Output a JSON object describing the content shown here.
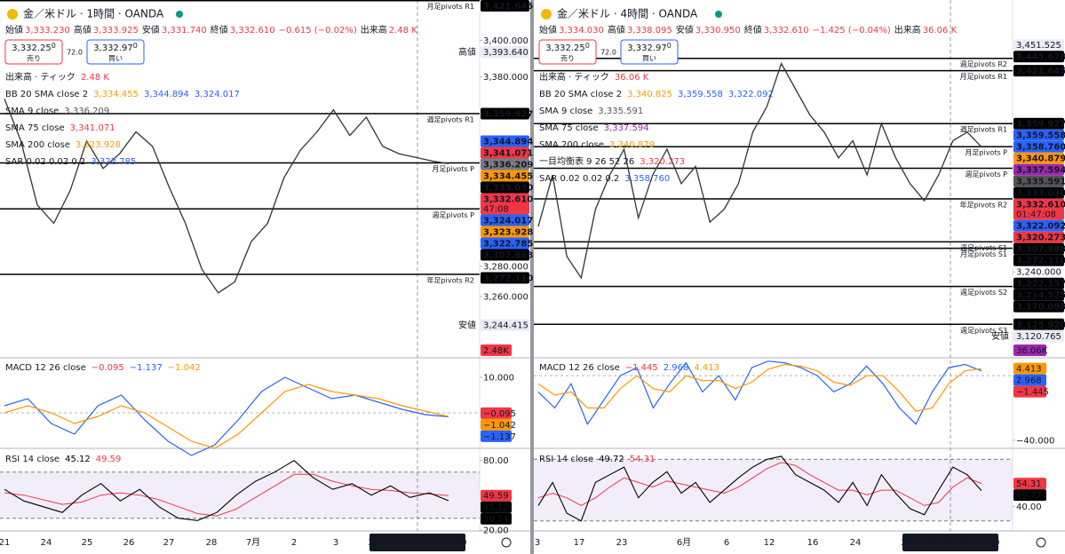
{
  "panels": [
    {
      "header": {
        "symbol": "金／米ドル · 1時間 · OANDA",
        "ohlc": [
          {
            "label": "始値",
            "value": "3,333.230"
          },
          {
            "label": "高値",
            "value": "3,333.925"
          },
          {
            "label": "安値",
            "value": "3,331.740"
          },
          {
            "label": "終値",
            "value": "3,332.610"
          }
        ],
        "change": "−0.615 (−0.02%)",
        "volume_label": "出来高",
        "volume": "2.48 K"
      },
      "sell": {
        "price": "3,332.25",
        "pip": "0",
        "label": "売り"
      },
      "spread": "72.0",
      "buy": {
        "price": "3,332.97",
        "pip": "0",
        "label": "買い"
      },
      "volume_legend": {
        "name": "出来高 · ティック",
        "value": "2.48 K"
      },
      "indicators": [
        {
          "name": "BB 20 SMA close 2",
          "values": [
            "3,334.455",
            "3,344.894",
            "3,324.017"
          ],
          "colors": [
            "#ff9800",
            "#2962ff",
            "#2962ff"
          ]
        },
        {
          "name": "SMA 9 close",
          "values": [
            "3,336.209"
          ],
          "colors": [
            "#555555"
          ]
        },
        {
          "name": "SMA 75 close",
          "values": [
            "3,341.071"
          ],
          "colors": [
            "#f23645"
          ]
        },
        {
          "name": "SMA 200 close",
          "values": [
            "3,323.928"
          ],
          "colors": [
            "#ff9800"
          ]
        },
        {
          "name": "SAR 0.02 0.02 0.2",
          "values": [
            "3,322.785"
          ],
          "colors": [
            "#2962ff"
          ]
        }
      ],
      "ylim": [
        3228,
        3422
      ],
      "price": {
        "name": "金／米ドル",
        "color": "#333333",
        "values": [
          3368,
          3345,
          3310,
          3300,
          3318,
          3345,
          3330,
          3338,
          3350,
          3342,
          3320,
          3300,
          3275,
          3262,
          3268,
          3290,
          3300,
          3325,
          3340,
          3350,
          3362,
          3348,
          3358,
          3342,
          3338,
          3336,
          3334,
          3332.61
        ]
      },
      "pivots": [
        {
          "value": 3421.645,
          "label": "月足pivots R1"
        },
        {
          "value": 3359.927,
          "label": "週足pivots R1"
        },
        {
          "value": 3333.03,
          "label": "月足pivots P"
        },
        {
          "value": 3307.888,
          "label": "週足pivots P"
        },
        {
          "value": 3272.11,
          "label": "年足pivots R2"
        }
      ],
      "price_axis": [
        {
          "value": 3421.645,
          "label": "3,421.645",
          "color": "#000000"
        },
        {
          "value": 3400,
          "label": "3,400.000"
        },
        {
          "value": 3393.64,
          "label": "3,393.640",
          "tag": "高値",
          "color": "#e9ecf5"
        },
        {
          "value": 3380,
          "label": "3,380.000"
        },
        {
          "value": 3359.927,
          "label": "3,359.927",
          "color": "#000000"
        },
        {
          "value": 3344.894,
          "label": "3,344.894",
          "color": "#2962ff"
        },
        {
          "value": 3341.071,
          "label": "3,341.071",
          "color": "#f23645"
        },
        {
          "value": 3336.209,
          "label": "3,336.209",
          "color": "#787b86"
        },
        {
          "value": 3334.455,
          "label": "3,334.455",
          "color": "#ff9800"
        },
        {
          "value": 3333.03,
          "label": "3,333.030",
          "color": "#000000"
        },
        {
          "value": 3332.61,
          "label": "3,332.610",
          "color": "#f23645",
          "sub": "47:08"
        },
        {
          "value": 3324.017,
          "label": "3,324.017",
          "color": "#2962ff"
        },
        {
          "value": 3323.928,
          "label": "3,323.928",
          "color": "#ff9800"
        },
        {
          "value": 3322.785,
          "label": "3,322.785",
          "color": "#2962ff"
        },
        {
          "value": 3307.888,
          "label": "3,307.888",
          "color": "#000000"
        },
        {
          "value": 3280,
          "label": "3,280.000"
        },
        {
          "value": 3272.11,
          "label": "3,272.110",
          "color": "#000000"
        },
        {
          "value": 3260,
          "label": "3,260.000"
        },
        {
          "value": 3244.415,
          "label": "3,244.415",
          "tag": "安値",
          "color": "#e9ecf5"
        }
      ],
      "volume_tag": {
        "label": "2.48K",
        "color": "#f23645"
      },
      "macd": {
        "name": "MACD 12 26 close",
        "values": [
          "−0.095",
          "−1.137",
          "−1.042"
        ],
        "colors": [
          "#f23645",
          "#2962ff",
          "#ff9800"
        ],
        "ylim": [
          -10,
          15
        ],
        "macd": [
          2,
          4,
          -3,
          -6,
          2,
          5,
          -2,
          -8,
          -12,
          -9,
          -2,
          6,
          10,
          7,
          4,
          5,
          3,
          1,
          -0.5,
          -1.137
        ],
        "signal": [
          0,
          2,
          0,
          -3,
          -1,
          2,
          0,
          -4,
          -8,
          -10,
          -6,
          0,
          6,
          8,
          6,
          5,
          4,
          2,
          0.5,
          -1.042
        ],
        "axis": [
          {
            "value": 10,
            "label": "10.000"
          },
          {
            "value": -0.095,
            "label": "−0.095",
            "color": "#f23645"
          },
          {
            "value": -1.042,
            "label": "−1.042",
            "color": "#ff9800"
          },
          {
            "value": -1.137,
            "label": "−1.137",
            "color": "#2962ff"
          }
        ]
      },
      "rsi": {
        "name": "RSI 14 close",
        "values": [
          "45.12",
          "49.59"
        ],
        "colors": [
          "#000000",
          "#f23645"
        ],
        "ylim": [
          19,
          89
        ],
        "band": [
          30,
          70
        ],
        "rsi": [
          55,
          45,
          40,
          35,
          50,
          60,
          45,
          55,
          40,
          30,
          28,
          35,
          50,
          62,
          70,
          80,
          65,
          55,
          60,
          50,
          58,
          48,
          52,
          45.12
        ],
        "ma": [
          52,
          50,
          46,
          42,
          44,
          50,
          52,
          50,
          46,
          40,
          34,
          32,
          38,
          48,
          58,
          68,
          68,
          62,
          58,
          55,
          54,
          52,
          51,
          49.59
        ],
        "axis": [
          {
            "value": 80,
            "label": "80.00"
          },
          {
            "value": 49.59,
            "label": "49.59",
            "color": "#f23645"
          },
          {
            "value": 45.12,
            "label": "45.12",
            "color": "#000000"
          },
          {
            "value": 30.74,
            "label": "30.74",
            "color": "#000000"
          },
          {
            "value": 20,
            "label": "20.00"
          }
        ]
      },
      "time_axis": [
        "21",
        "24",
        "25",
        "26",
        "27",
        "28",
        "7月",
        "2",
        "3"
      ],
      "cursor_time": "2025-07-05 (土)  00:00"
    },
    {
      "header": {
        "symbol": "金／米ドル · 4時間 · OANDA",
        "ohlc": [
          {
            "label": "始値",
            "value": "3,334.030"
          },
          {
            "label": "高値",
            "value": "3,338.095"
          },
          {
            "label": "安値",
            "value": "3,330.950"
          },
          {
            "label": "終値",
            "value": "3,332.610"
          }
        ],
        "change": "−1.425 (−0.04%)",
        "volume_label": "出来高",
        "volume": "36.06 K"
      },
      "sell": {
        "price": "3,332.25",
        "pip": "0",
        "label": "売り"
      },
      "spread": "72.0",
      "buy": {
        "price": "3,332.97",
        "pip": "0",
        "label": "買い"
      },
      "volume_legend": {
        "name": "出来高 · ティック",
        "value": "36.06 K"
      },
      "indicators": [
        {
          "name": "BB 20 SMA close 2",
          "values": [
            "3,340.825",
            "3,359.558",
            "3,322.092"
          ],
          "colors": [
            "#ff9800",
            "#2962ff",
            "#2962ff"
          ]
        },
        {
          "name": "SMA 9 close",
          "values": [
            "3,335.591"
          ],
          "colors": [
            "#555555"
          ]
        },
        {
          "name": "SMA 75 close",
          "values": [
            "3,337.594"
          ],
          "colors": [
            "#9c27b0"
          ]
        },
        {
          "name": "SMA 200 close",
          "values": [
            "3,340.879"
          ],
          "colors": [
            "#ff9800"
          ]
        },
        {
          "name": "一目均衡表 9 26 52 26",
          "values": [
            "3,320.273"
          ],
          "colors": [
            "#f23645"
          ]
        },
        {
          "name": "SAR 0.02 0.02 0.2",
          "values": [
            "3,358.760"
          ],
          "colors": [
            "#2962ff"
          ]
        }
      ],
      "ylim": [
        3090,
        3504
      ],
      "price": {
        "name": "金／米ドル",
        "color": "#333333",
        "values": [
          3240,
          3300,
          3205,
          3180,
          3260,
          3300,
          3330,
          3250,
          3300,
          3330,
          3290,
          3310,
          3245,
          3260,
          3290,
          3350,
          3380,
          3430,
          3400,
          3370,
          3350,
          3320,
          3340,
          3300,
          3360,
          3320,
          3290,
          3270,
          3300,
          3340,
          3350,
          3332.61
        ]
      },
      "pivots": [
        {
          "value": 3436,
          "label": "週足pivots R2"
        },
        {
          "value": 3421.645,
          "label": "月足pivots R1"
        },
        {
          "value": 3359.927,
          "label": "週足pivots R1"
        },
        {
          "value": 3333.03,
          "label": "月足pivots P"
        },
        {
          "value": 3307.888,
          "label": "週足pivots P"
        },
        {
          "value": 3272.11,
          "label": "年足pivots R2"
        },
        {
          "value": 3222.137,
          "label": "週足pivots S1"
        },
        {
          "value": 3214.525,
          "label": "月足pivots S1"
        },
        {
          "value": 3170.098,
          "label": "週足pivots S2"
        },
        {
          "value": 3125.92,
          "label": "週足pivots S3"
        }
      ],
      "price_axis": [
        {
          "value": 3451.525,
          "label": "3,451.525",
          "color": "#e9ecf5"
        },
        {
          "value": 3445.678,
          "label": "3,445.678",
          "color": "#000000"
        },
        {
          "value": 3421.645,
          "label": "3,421.645",
          "color": "#000000"
        },
        {
          "value": 3359.927,
          "label": "3,359.927",
          "color": "#000000"
        },
        {
          "value": 3359.558,
          "label": "3,359.558",
          "color": "#2962ff"
        },
        {
          "value": 3358.76,
          "label": "3,358.760",
          "color": "#2962ff"
        },
        {
          "value": 3340.879,
          "label": "3,340.879",
          "color": "#ff9800"
        },
        {
          "value": 3337.594,
          "label": "3,337.594",
          "color": "#9c27b0"
        },
        {
          "value": 3335.591,
          "label": "3,335.591",
          "color": "#555555"
        },
        {
          "value": 3333.03,
          "label": "3,333.030",
          "color": "#000000"
        },
        {
          "value": 3332.61,
          "label": "3,332.610",
          "color": "#f23645",
          "sub": "01:47:08"
        },
        {
          "value": 3322.092,
          "label": "3,322.092",
          "color": "#2962ff"
        },
        {
          "value": 3320.273,
          "label": "3,320.273",
          "color": "#f23645"
        },
        {
          "value": 3307.888,
          "label": "3,307.888",
          "color": "#000000"
        },
        {
          "value": 3272.11,
          "label": "3,272.110",
          "color": "#000000"
        },
        {
          "value": 3240,
          "label": "3,240.000"
        },
        {
          "value": 3222.137,
          "label": "3,222.137",
          "color": "#000000"
        },
        {
          "value": 3214.525,
          "label": "3,214.525",
          "color": "#000000"
        },
        {
          "value": 3170.098,
          "label": "3,170.098",
          "color": "#000000"
        },
        {
          "value": 3125.92,
          "label": "3,125.920",
          "color": "#000000"
        },
        {
          "value": 3120.765,
          "label": "3,120.765",
          "tag": "安値",
          "color": "#e9ecf5"
        }
      ],
      "volume_tag": {
        "label": "36.06K",
        "color": "#9c27b0"
      },
      "macd": {
        "name": "MACD 12 26 close",
        "values": [
          "−1.445",
          "2.968",
          "4.413"
        ],
        "colors": [
          "#f23645",
          "#2962ff",
          "#ff9800"
        ],
        "ylim": [
          -45,
          10
        ],
        "macd": [
          -10,
          -20,
          -5,
          -30,
          -15,
          0,
          5,
          -20,
          -5,
          8,
          -10,
          0,
          -15,
          5,
          9,
          8,
          5,
          0,
          -10,
          -5,
          6,
          -5,
          -20,
          -30,
          -10,
          5,
          7,
          2.968
        ],
        "signal": [
          -5,
          -12,
          -10,
          -20,
          -20,
          -8,
          0,
          -8,
          -10,
          0,
          -3,
          -3,
          -8,
          -4,
          4,
          7,
          6,
          3,
          -4,
          -6,
          0,
          0,
          -10,
          -22,
          -20,
          -5,
          3,
          4.413
        ],
        "axis": [
          {
            "value": 4.413,
            "label": "4.413",
            "color": "#ff9800"
          },
          {
            "value": 2.968,
            "label": "2.968",
            "color": "#2962ff"
          },
          {
            "value": -1.445,
            "label": "−1.445",
            "color": "#f23645"
          },
          {
            "value": -40,
            "label": "−40.000"
          }
        ]
      },
      "rsi": {
        "name": "RSI 14 close",
        "values": [
          "49.72",
          "54.31"
        ],
        "colors": [
          "#000000",
          "#f23645"
        ],
        "ylim": [
          23.5,
          76
        ],
        "band": [
          30,
          70
        ],
        "rsi": [
          40,
          55,
          35,
          30,
          55,
          60,
          65,
          45,
          55,
          62,
          48,
          55,
          42,
          50,
          58,
          65,
          70,
          72,
          60,
          55,
          50,
          42,
          55,
          40,
          60,
          48,
          38,
          34,
          50,
          65,
          60,
          49.72
        ],
        "ma": [
          45,
          48,
          45,
          40,
          45,
          52,
          58,
          55,
          52,
          56,
          54,
          52,
          50,
          48,
          52,
          58,
          64,
          68,
          66,
          60,
          55,
          50,
          50,
          47,
          50,
          50,
          45,
          40,
          42,
          52,
          58,
          54.31
        ],
        "axis": [
          {
            "value": 54.31,
            "label": "54.31",
            "color": "#f23645"
          },
          {
            "value": 49.72,
            "label": "49.72",
            "color": "#000000"
          },
          {
            "value": 40,
            "label": "40.00"
          }
        ]
      },
      "time_axis": [
        "3",
        "17",
        "23",
        "6月",
        "6",
        "12",
        "16",
        "24"
      ],
      "cursor_time": "2025-07-04 (金)  22:00"
    }
  ]
}
